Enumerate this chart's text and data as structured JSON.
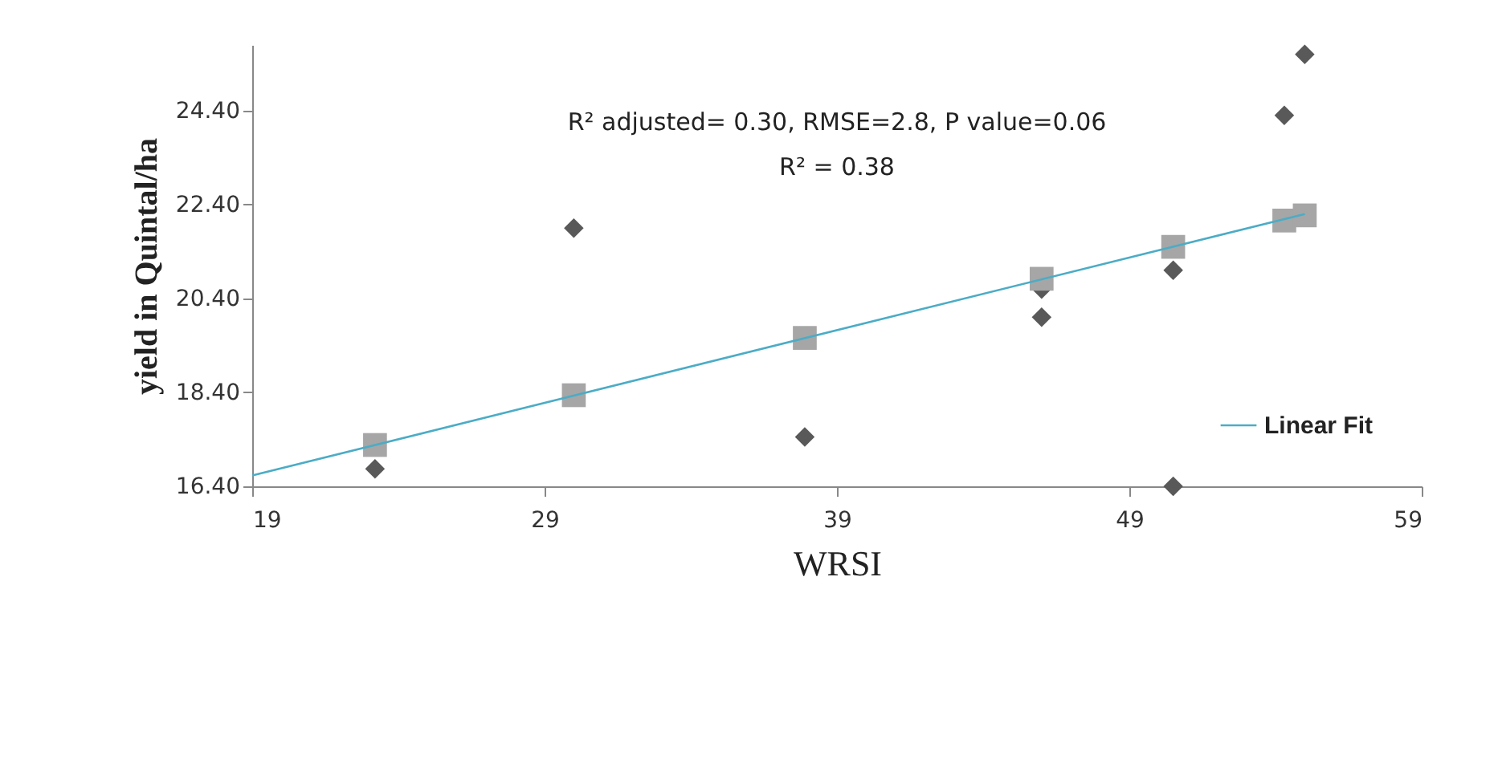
{
  "chart_data": {
    "type": "scatter",
    "xlabel": "WRSI",
    "ylabel": "yield in Quintal/ha",
    "annotations": [
      "R² adjusted= 0.30,  RMSE=2.8, P value=0.06",
      "R² = 0.38"
    ],
    "xlim": [
      19,
      59
    ],
    "xticks": [
      19,
      29,
      39,
      49,
      59
    ],
    "ylim": [
      16.4,
      25.8
    ],
    "yticks": [
      {
        "value": 16.4,
        "label": "16.40"
      },
      {
        "value": 18.4,
        "label": "18.40"
      },
      {
        "value": 20.4,
        "label": "20.40"
      },
      {
        "value": 22.4,
        "label": "22.40"
      },
      {
        "value": 24.4,
        "label": "24.40"
      }
    ],
    "grid": false,
    "legend": "bottom right",
    "series": [
      {
        "marker": "diamond",
        "color": "#595959",
        "x": [
          23.2,
          30.0,
          37.9,
          46.0,
          46.0,
          50.5,
          50.5,
          54.3,
          55.0
        ],
        "values": [
          16.77,
          21.9,
          17.45,
          20.0,
          20.6,
          21.0,
          16.4,
          24.3,
          25.6
        ]
      },
      {
        "marker": "square",
        "color": "#a6a6a6",
        "x": [
          23.2,
          30.0,
          37.9,
          46.0,
          50.5,
          54.3,
          55.0
        ],
        "values": [
          17.28,
          18.34,
          19.56,
          20.82,
          21.5,
          22.06,
          22.17
        ]
      },
      {
        "type": "line",
        "name": "Linear Fit",
        "color": "#4bacc6",
        "marker": "none",
        "x": [
          19,
          55
        ],
        "values": [
          16.63,
          22.2
        ]
      }
    ]
  }
}
